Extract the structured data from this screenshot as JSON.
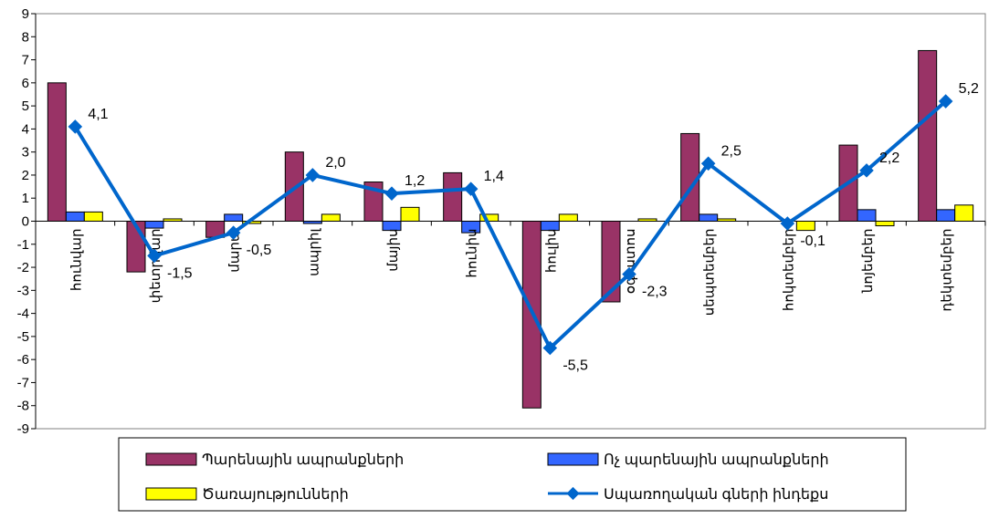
{
  "chart_data": {
    "type": "bar",
    "categories": [
      "հունվար",
      "փետրվար",
      "մարտ",
      "ապրիլ",
      "մայիս",
      "հունիս",
      "հուլիս",
      "օգոստոս",
      "սեպտեմբեր",
      "հոկտեմբեր",
      "նոյեմբեր",
      "դեկտեմբեր"
    ],
    "series": [
      {
        "name": "Պարենային ապրանքների",
        "type": "bar",
        "color": "#993366",
        "values": [
          6.0,
          -2.2,
          -0.7,
          3.0,
          1.7,
          2.1,
          -8.1,
          -3.5,
          3.8,
          0.0,
          3.3,
          7.4
        ]
      },
      {
        "name": "Ոչ պարենային  ապրանքների",
        "type": "bar",
        "color": "#3366FF",
        "values": [
          0.4,
          -0.3,
          0.3,
          -0.1,
          -0.4,
          -0.5,
          -0.4,
          0.0,
          0.3,
          0.0,
          0.5,
          0.5
        ]
      },
      {
        "name": "Ծառայությունների",
        "type": "bar",
        "color": "#FFFF00",
        "values": [
          0.4,
          0.1,
          -0.1,
          0.3,
          0.6,
          0.3,
          0.3,
          0.1,
          0.1,
          -0.4,
          -0.2,
          0.7
        ]
      },
      {
        "name": "Սպառողական գների ինդեքս",
        "type": "line",
        "color": "#0066CC",
        "values": [
          4.1,
          -1.5,
          -0.5,
          2.0,
          1.2,
          1.4,
          -5.5,
          -2.3,
          2.5,
          -0.1,
          2.2,
          5.2
        ]
      }
    ],
    "line_labels": [
      "4,1",
      "-1,5",
      "-0,5",
      "2,0",
      "1,2",
      "1,4",
      "-5,5",
      "-2,3",
      "2,5",
      "-0,1",
      "2,2",
      "5,2"
    ],
    "y_ticks": [
      "9",
      "8",
      "7",
      "6",
      "5",
      "4",
      "3",
      "2",
      "1",
      "0",
      "-1",
      "-2",
      "-3",
      "-4",
      "-5",
      "-6",
      "-7",
      "-8",
      "-9"
    ],
    "ylim": [
      -9,
      9
    ],
    "legend_position": "bottom",
    "grid": false
  }
}
